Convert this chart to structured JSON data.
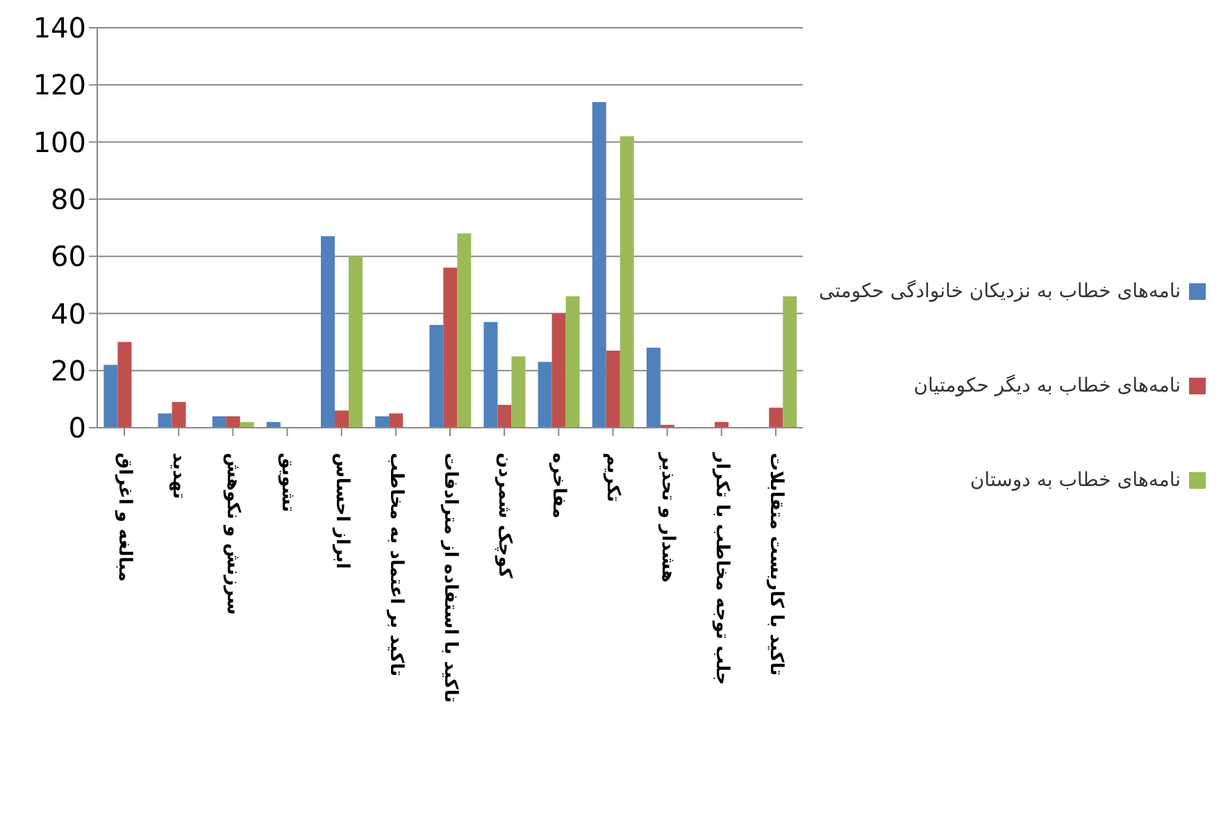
{
  "chart_data": {
    "type": "bar",
    "categories": [
      "مبالغه و اغراق",
      "تهدید",
      "سرزنش و نکوهش",
      "تشویق",
      "ابراز احساس",
      "تاکید بر اعتماد به مخاطب",
      "تاکید با استفاده از مترادفات",
      "کوچک شمردن",
      "مفاخره",
      "تکریم",
      "هشدار و تحذیر",
      "جلب توجه مخاطب با تکرار",
      "تاکید با کاربست متقابلات"
    ],
    "series": [
      {
        "name": "نامه‌های خطاب به نزدیکان خانوادگی حکومتی",
        "color": "#4f81bd",
        "values": [
          22,
          5,
          4,
          2,
          67,
          4,
          36,
          37,
          23,
          114,
          28,
          0,
          0
        ]
      },
      {
        "name": "نامه‌های  خطاب به دیگر حکومتیان",
        "color": "#c0504d",
        "values": [
          30,
          9,
          4,
          0,
          6,
          5,
          56,
          8,
          40,
          27,
          1,
          2,
          7
        ]
      },
      {
        "name": "نامه‌های خطاب به دوستان",
        "color": "#9bbb59",
        "values": [
          0,
          0,
          2,
          0,
          60,
          0,
          68,
          25,
          46,
          102,
          0,
          0,
          46
        ]
      }
    ],
    "ylim": [
      0,
      140
    ],
    "yticks": [
      0,
      20,
      40,
      60,
      80,
      100,
      120,
      140
    ],
    "grid": "y",
    "legend": "right"
  }
}
